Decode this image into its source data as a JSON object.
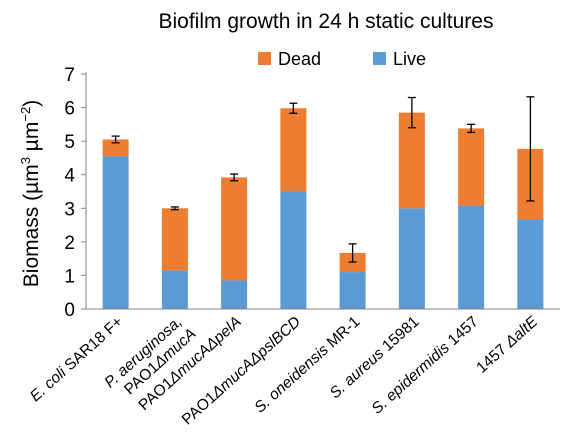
{
  "chart_data": {
    "type": "bar",
    "stacked": true,
    "title": "Biofilm growth in 24 h static cultures",
    "ylabel": "Biomass (µm³ µm⁻²)",
    "ylabel_parts": [
      "Biomass (µm",
      "3",
      " µm",
      "−2",
      ")"
    ],
    "xlabel": "",
    "ylim": [
      0,
      7
    ],
    "yticks": [
      0,
      1,
      2,
      3,
      4,
      5,
      6,
      7
    ],
    "grid": false,
    "legend_position": "top",
    "categories": [
      {
        "label": "E. coli SAR18 F+",
        "parts": [
          {
            "t": "E. coli",
            "i": true
          },
          {
            "t": " SAR18 F+",
            "i": false
          }
        ]
      },
      {
        "label": "P. aeruginosa, PAO1ΔmucA",
        "parts": [
          {
            "t": "P. aeruginosa,",
            "i": true
          }
        ],
        "parts2": [
          {
            "t": "PAO1",
            "i": false
          },
          {
            "t": "ΔmucA",
            "i": true
          }
        ]
      },
      {
        "label": "PAO1ΔmucAΔpelA",
        "parts": [
          {
            "t": "PAO1",
            "i": false
          },
          {
            "t": "ΔmucAΔpelA",
            "i": true
          }
        ]
      },
      {
        "label": "PAO1ΔmucAΔpslBCD",
        "parts": [
          {
            "t": "PAO1",
            "i": false
          },
          {
            "t": "ΔmucAΔpslBCD",
            "i": true
          }
        ]
      },
      {
        "label": "S. oneidensis MR-1",
        "parts": [
          {
            "t": "S. oneidensis",
            "i": true
          },
          {
            "t": " MR-1",
            "i": false
          }
        ]
      },
      {
        "label": "S. aureus 15981",
        "parts": [
          {
            "t": "S. aureus",
            "i": true
          },
          {
            "t": " 15981",
            "i": false
          }
        ]
      },
      {
        "label": "S. epidermidis 1457",
        "parts": [
          {
            "t": "S. epidermidis",
            "i": true
          },
          {
            "t": " 1457",
            "i": false
          }
        ]
      },
      {
        "label": "1457 ΔaltE",
        "parts": [
          {
            "t": "1457 ",
            "i": false
          },
          {
            "t": "ΔaltE",
            "i": true
          }
        ]
      }
    ],
    "series": [
      {
        "name": "Live",
        "color": "#5b9bd5",
        "values": [
          4.55,
          1.15,
          0.85,
          3.5,
          1.1,
          3.0,
          3.08,
          2.65
        ]
      },
      {
        "name": "Dead",
        "color": "#ed7d31",
        "values": [
          0.5,
          1.85,
          3.07,
          2.48,
          0.57,
          2.85,
          2.3,
          2.12
        ]
      }
    ],
    "error_bars": {
      "center": [
        5.05,
        3.0,
        3.92,
        5.98,
        1.67,
        5.85,
        5.38,
        4.77
      ],
      "plus_minus": [
        0.1,
        0.04,
        0.1,
        0.15,
        0.27,
        0.45,
        0.12,
        1.55
      ]
    }
  }
}
